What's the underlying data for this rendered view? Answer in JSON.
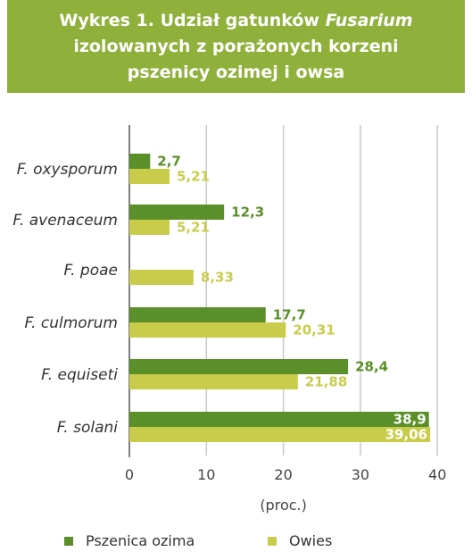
{
  "header": {
    "title_part1": "Wykres 1. Udział gatunków ",
    "title_italic": "Fusarium",
    "title_line2": "izolowanych z porażonych korzeni",
    "title_line3": "pszenicy ozimej i owsa"
  },
  "colors": {
    "wheat": "#5a8f29",
    "oat": "#c9cc4a",
    "header_bg": "#8fb13c"
  },
  "chart_data": {
    "type": "bar",
    "orientation": "horizontal",
    "categories": [
      "F. oxysporum",
      "F. avenaceum",
      "F. poae",
      "F. culmorum",
      "F. equiseti",
      "F. solani"
    ],
    "series": [
      {
        "name": "Pszenica ozima",
        "values": [
          2.7,
          12.3,
          null,
          17.7,
          28.4,
          38.9
        ],
        "labels": [
          "2,7",
          "12,3",
          "",
          "17,7",
          "28,4",
          "38,9"
        ]
      },
      {
        "name": "Owies",
        "values": [
          5.21,
          5.21,
          8.33,
          20.31,
          21.88,
          39.06
        ],
        "labels": [
          "5,21",
          "5,21",
          "8,33",
          "20,31",
          "21,88",
          "39,06"
        ]
      }
    ],
    "xlim": [
      0,
      40
    ],
    "xticks": [
      "0",
      "10",
      "20",
      "30",
      "40"
    ],
    "xlabel": "(proc.)",
    "grid": true,
    "legend_position": "bottom"
  }
}
